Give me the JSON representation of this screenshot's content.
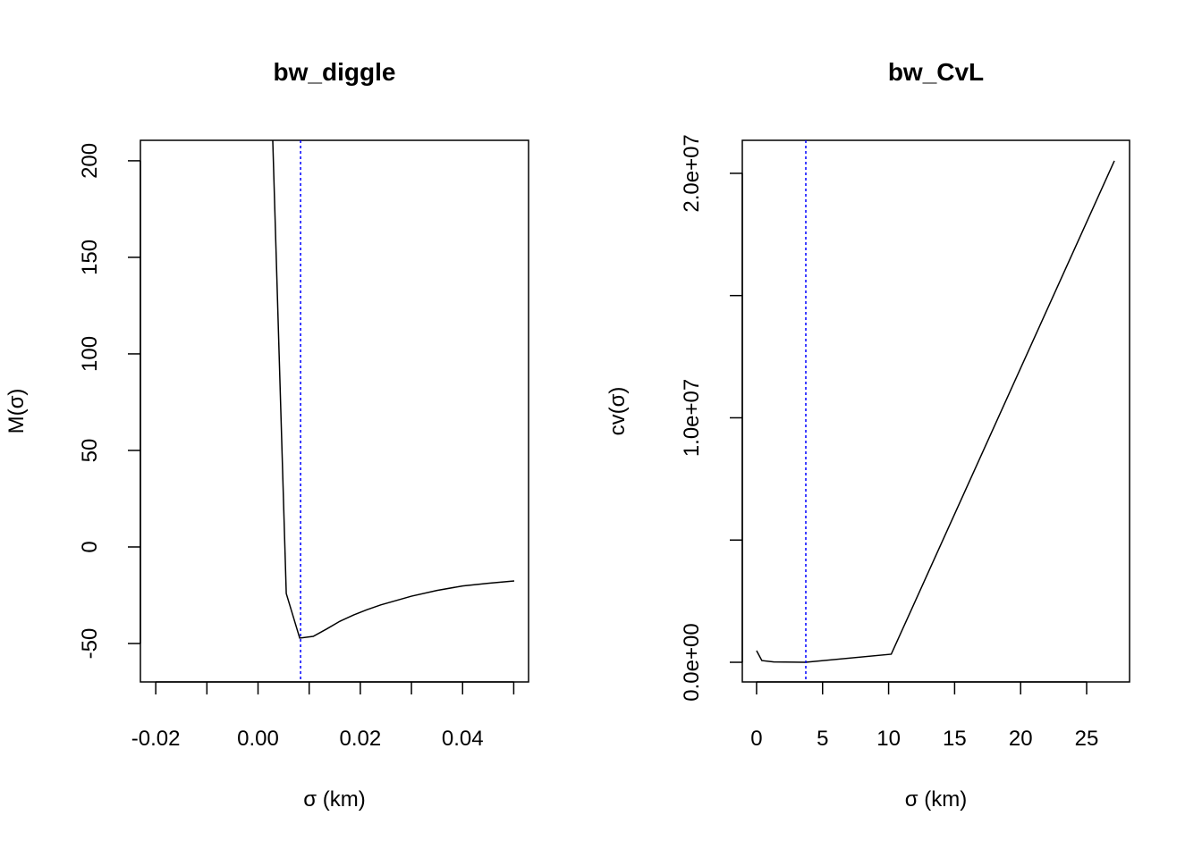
{
  "chart_data": [
    {
      "type": "line",
      "title": "bw_diggle",
      "xlabel": "σ (km)",
      "ylabel": "M(σ)",
      "x": [
        0.00266,
        0.00552,
        0.00815,
        0.0108,
        0.0134,
        0.016,
        0.0187,
        0.0213,
        0.024,
        0.03,
        0.035,
        0.04,
        0.045,
        0.0501
      ],
      "values": [
        230,
        -24.1,
        -47.2,
        -46.3,
        -42.5,
        -38.5,
        -35.2,
        -32.5,
        -30,
        -25.5,
        -22.5,
        -20.2,
        -18.8,
        -17.6
      ],
      "color": "#000000",
      "vline": 0.00832,
      "vline_color": "#0000ff",
      "xlim": [
        -0.023,
        0.0529
      ],
      "ylim": [
        -69.9,
        210.6
      ],
      "xticks": [
        {
          "value": -0.02,
          "label": "-0.02"
        },
        {
          "value": -0.01,
          "label": null
        },
        {
          "value": 0,
          "label": "0.00"
        },
        {
          "value": 0.01,
          "label": null
        },
        {
          "value": 0.02,
          "label": "0.02"
        },
        {
          "value": 0.03,
          "label": null
        },
        {
          "value": 0.04,
          "label": "0.04"
        },
        {
          "value": 0.05,
          "label": null
        }
      ],
      "yticks": [
        -50,
        0,
        50,
        100,
        150,
        200
      ]
    },
    {
      "type": "line",
      "title": "bw_CvL",
      "xlabel": "σ (km)",
      "ylabel": "cv(σ)",
      "x": [
        0,
        0.4,
        1.3,
        3.7,
        10.2,
        27.1
      ],
      "values": [
        475000,
        70000,
        15000,
        0,
        330000,
        20510000
      ],
      "color": "#000000",
      "vline": 3.73,
      "vline_color": "#0000ff",
      "xlim": [
        -1.08,
        28.25
      ],
      "ylim": [
        -804000,
        21350000
      ],
      "xticks": [
        0,
        5,
        10,
        15,
        20,
        25
      ],
      "yticks": [
        {
          "value": 0,
          "label": "0.0e+00"
        },
        {
          "value": 5000000,
          "label": null
        },
        {
          "value": 10000000,
          "label": "1.0e+07"
        },
        {
          "value": 15000000,
          "label": null
        },
        {
          "value": 20000000,
          "label": "2.0e+07"
        }
      ]
    }
  ]
}
